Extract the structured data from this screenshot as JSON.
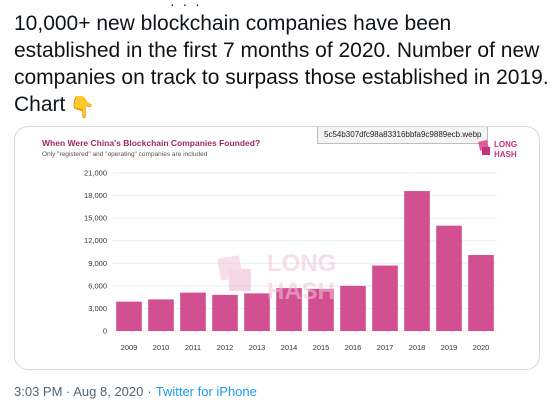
{
  "tweet": {
    "text": "10,000+ new blockchain companies have been established in the first 7 months of 2020. Number of new companies on track to surpass those established in 2019. Chart",
    "emoji": "👇",
    "timestamp": "3:03 PM · Aug 8, 2020",
    "separator": "·",
    "source": "Twitter for iPhone"
  },
  "media": {
    "filename": "5c54b307dfc98a83316bbfa9c9889ecb.webp",
    "logo_line1": "LONG",
    "logo_line2": "HASH",
    "watermark_line1": "LONG",
    "watermark_line2": "HASH"
  },
  "chart_data": {
    "type": "bar",
    "title": "When Were China's Blockchain Companies Founded?",
    "subtitle": "Only \"registered\" and \"operating\" companies are included",
    "categories": [
      "2009",
      "2010",
      "2011",
      "2012",
      "2013",
      "2014",
      "2015",
      "2016",
      "2017",
      "2018",
      "2019",
      "2020"
    ],
    "values": [
      3900,
      4200,
      5100,
      4800,
      5000,
      5700,
      5600,
      6000,
      8700,
      18600,
      14000,
      10100
    ],
    "yticks": [
      0,
      3000,
      6000,
      9000,
      12000,
      15000,
      18000,
      21000
    ],
    "ytick_labels": [
      "0",
      "3,000",
      "6,000",
      "9,000",
      "12,000",
      "15,000",
      "18,000",
      "21,000"
    ],
    "ylim": [
      0,
      21000
    ],
    "bar_color": "#d2508f",
    "grid": true
  },
  "colors": {
    "title": "#9b2b67",
    "link": "#1d9bf0",
    "meta": "#536471"
  }
}
